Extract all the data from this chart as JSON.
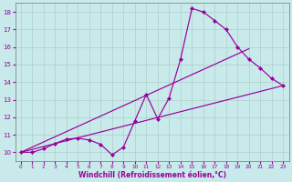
{
  "xlabel": "Windchill (Refroidissement éolien,°C)",
  "bg_color": "#c8eaea",
  "line_color": "#990099",
  "grid_color": "#b0cccc",
  "xlim": [
    -0.5,
    23.5
  ],
  "ylim": [
    9.5,
    18.5
  ],
  "xticks": [
    0,
    1,
    2,
    3,
    4,
    5,
    6,
    7,
    8,
    9,
    10,
    11,
    12,
    13,
    14,
    15,
    16,
    17,
    18,
    19,
    20,
    21,
    22,
    23
  ],
  "yticks": [
    10,
    11,
    12,
    13,
    14,
    15,
    16,
    17,
    18
  ],
  "series": [
    {
      "x": [
        0,
        1,
        2,
        3,
        4,
        5,
        6,
        7,
        8,
        9,
        10,
        11,
        12,
        13,
        14,
        15,
        16,
        17,
        18,
        19,
        20,
        21,
        22,
        23
      ],
      "y": [
        10,
        10,
        10.2,
        10.5,
        10.75,
        10.8,
        10.7,
        10.45,
        9.85,
        10.3,
        11.8,
        13.3,
        11.9,
        13.1,
        15.3,
        18.2,
        18.0,
        17.5,
        17.0,
        16.0,
        15.3,
        14.8,
        14.2,
        13.8
      ],
      "marker": true
    },
    {
      "x": [
        0,
        23
      ],
      "y": [
        10.0,
        13.8
      ],
      "marker": false
    },
    {
      "x": [
        0,
        20
      ],
      "y": [
        10.0,
        15.9
      ],
      "marker": false
    }
  ]
}
